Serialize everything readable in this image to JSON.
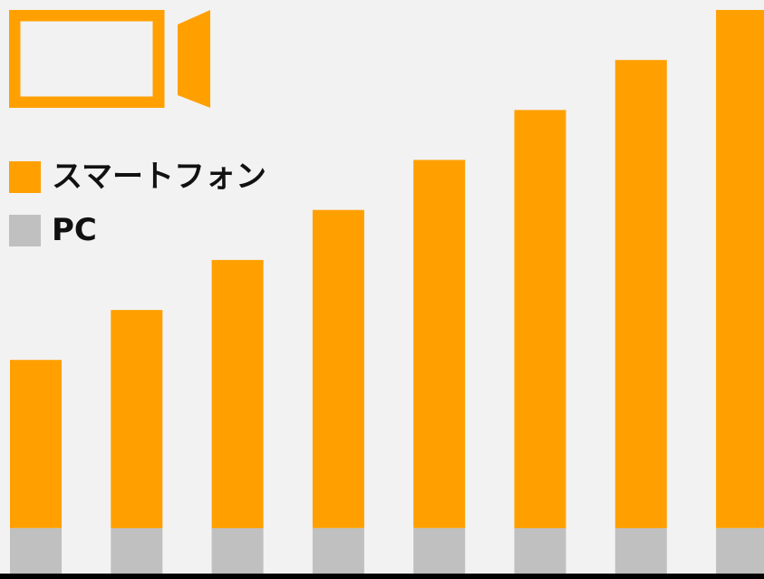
{
  "colors": {
    "background": "#f2f2f2",
    "smartphone": "#ffa000",
    "pc": "#c0c0c0",
    "axis": "#000000"
  },
  "icon": {
    "name": "video-camera-icon"
  },
  "legend": {
    "items": [
      {
        "label": "スマートフォン",
        "color": "#ffa000"
      },
      {
        "label": "PC",
        "color": "#c0c0c0"
      }
    ]
  },
  "chart_data": {
    "type": "bar",
    "stacked": true,
    "categories": [
      "",
      "",
      "",
      "",
      "",
      "",
      "",
      ""
    ],
    "series": [
      {
        "name": "PC",
        "color": "#c0c0c0",
        "values": [
          10,
          10,
          10,
          10,
          10,
          10,
          10,
          10
        ]
      },
      {
        "name": "スマートフォン",
        "color": "#ffa000",
        "values": [
          37,
          48,
          59,
          70,
          81,
          92,
          103,
          114
        ]
      }
    ],
    "ylim": [
      0,
      124
    ],
    "grid": false,
    "legend_position": "top-left",
    "title": "",
    "xlabel": "",
    "ylabel": ""
  }
}
